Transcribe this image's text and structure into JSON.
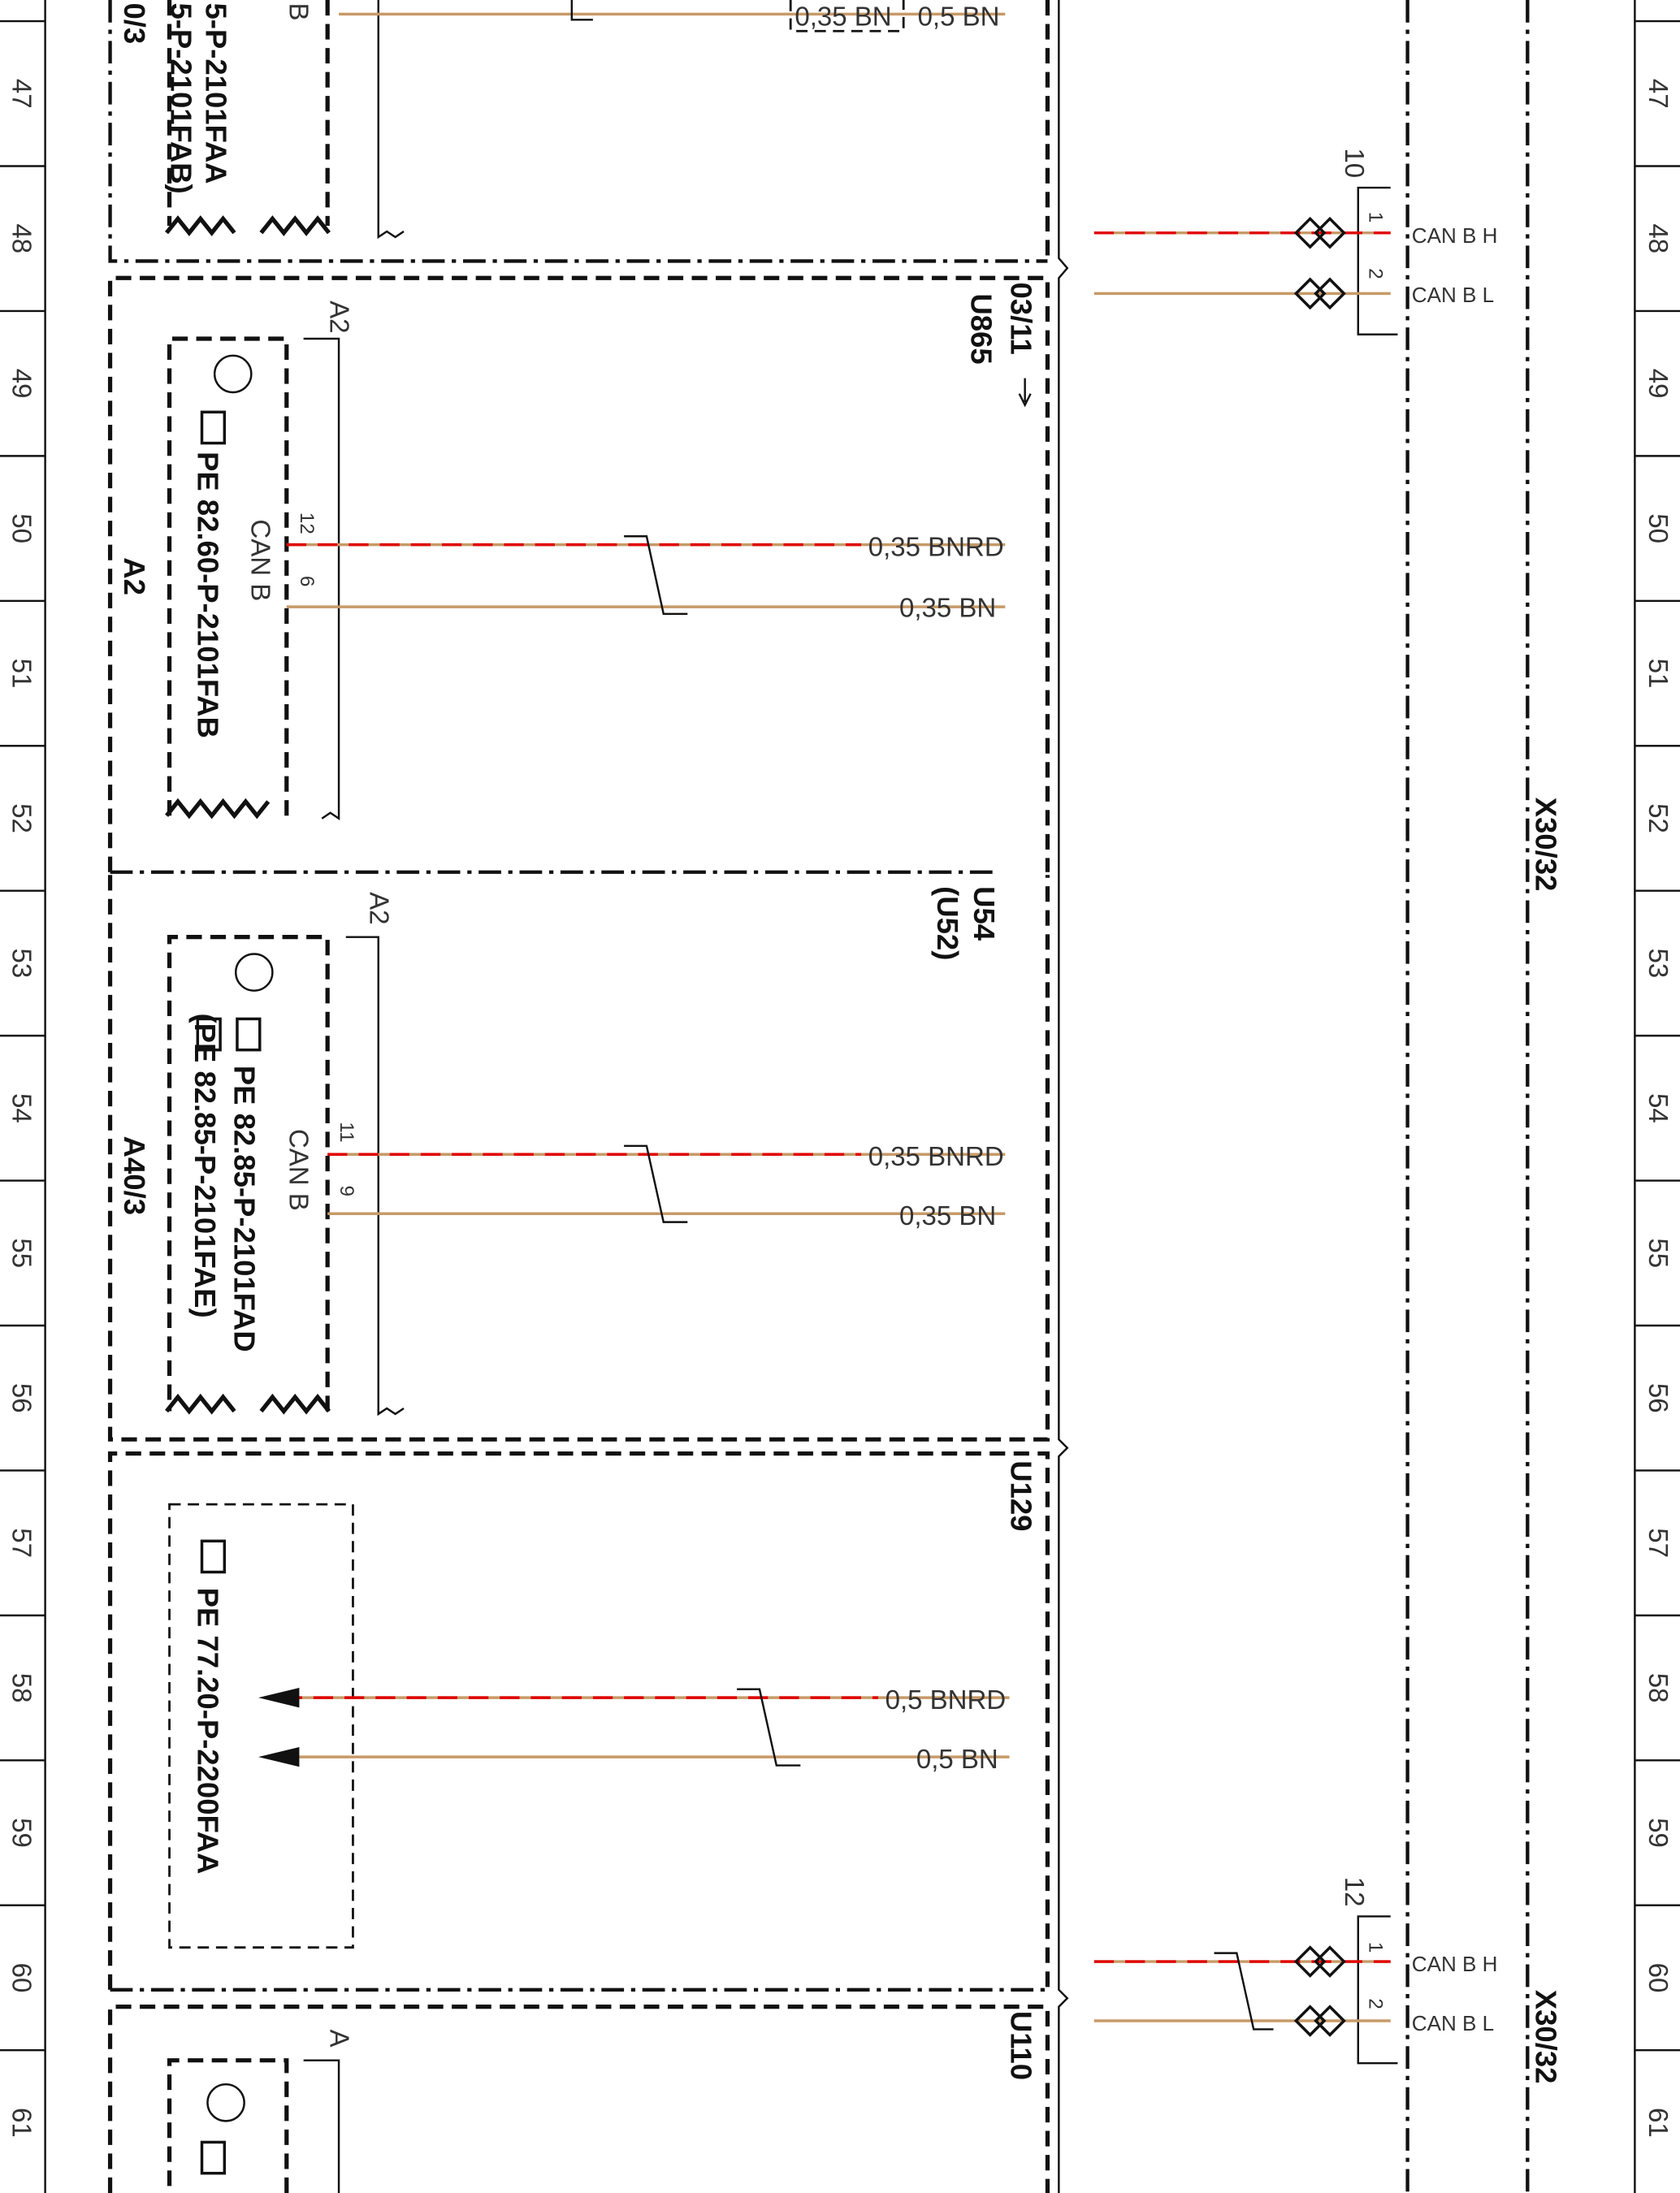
{
  "rulers": {
    "rows": [
      "47",
      "48",
      "49",
      "50",
      "51",
      "52",
      "53",
      "54",
      "55",
      "56",
      "57",
      "58",
      "59",
      "60",
      "61"
    ]
  },
  "top_block": {
    "label": "0/3",
    "ref_1": "5-P-2101FAA",
    "ref_2": "5-P-2101FAB)",
    "pin": "B",
    "wire_1": "0,35 BN",
    "wire_2": "0,5 BN"
  },
  "block_a2": {
    "pin_group": "A2",
    "ref": "PE 82.60-P-2101FAB",
    "label": "A2",
    "pins_label": "CAN B",
    "pin_1": "12",
    "pin_2": "6",
    "wire_1": "0,35 BNRD",
    "wire_2": "0,35 BN",
    "ref_page": "03/11",
    "code": "U865"
  },
  "block_a40": {
    "pin_group": "A2",
    "ref_1": "PE 82.85-P-2101FAD",
    "ref_2": "(PE 82.85-P-2101FAE)",
    "label": "A40/3",
    "pins_label": "CAN B",
    "pin_1": "11",
    "pin_2": "9",
    "wire_1": "0,35 BNRD",
    "wire_2": "0,35 BN",
    "code_1": "U54",
    "code_2": "(U52)"
  },
  "block_u129": {
    "ref": "PE 77.20-P-2200FAA",
    "wire_1": "0,5 BNRD",
    "wire_2": "0,5 BN",
    "code": "U129"
  },
  "block_u110": {
    "pin_group": "A",
    "code": "U110"
  },
  "connectors": [
    {
      "number": "10",
      "pin_1": "1",
      "pin_2": "2",
      "signal_1": "CAN B H",
      "signal_2": "CAN B L"
    },
    {
      "number": "12",
      "pin_1": "1",
      "pin_2": "2",
      "signal_1": "CAN B H",
      "signal_2": "CAN B L"
    }
  ],
  "bus": {
    "labels": [
      "X30/32",
      "X30/32"
    ]
  }
}
